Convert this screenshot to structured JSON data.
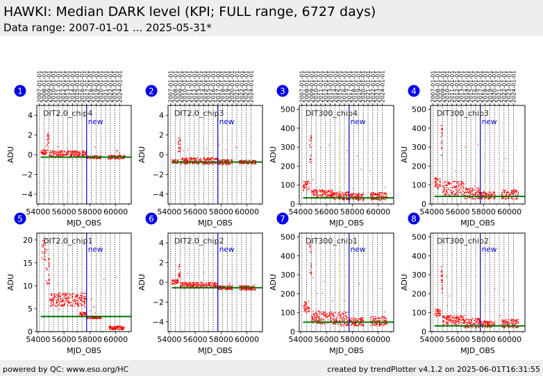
{
  "header": {
    "title": "HAWKI: Median DARK level (KPI; FULL range, 6727 days)",
    "subtitle": "Data range: 2007-01-01 ... 2025-05-31*"
  },
  "footer": {
    "left": "powered by QC: www.eso.org/HC",
    "right": "created by trendPlotter v4.1.2 on 2025-06-01T16:31:55"
  },
  "colors": {
    "points": "#ff0000",
    "reference_line": "#007700",
    "new_marker": "#0000cc",
    "badge": "#0000ee"
  },
  "chart_data": [
    {
      "id": "1",
      "type": "scatter",
      "title": "DIT2.0_chip4",
      "xlabel": "MJD_OBS",
      "ylabel": "ADU",
      "xlim": [
        53900,
        61200
      ],
      "ylim": [
        -5,
        5
      ],
      "yticks": [
        -4,
        -2,
        0,
        2,
        4
      ],
      "xticks": [
        54000,
        56000,
        58000,
        60000
      ],
      "reference_level": -0.25,
      "new_marker_x": 57750,
      "new_label": "new",
      "clusters": [
        {
          "x": [
            54200,
            54700
          ],
          "y": [
            0,
            0.5
          ]
        },
        {
          "x": [
            54700,
            54850
          ],
          "y": [
            0.5,
            2.2
          ]
        },
        {
          "x": [
            54850,
            57750
          ],
          "y": [
            -0.3,
            0.4
          ]
        },
        {
          "x": [
            57750,
            58900
          ],
          "y": [
            -0.4,
            -0.1
          ]
        },
        {
          "x": [
            59400,
            60700
          ],
          "y": [
            -0.45,
            -0.05
          ]
        }
      ]
    },
    {
      "id": "2",
      "type": "scatter",
      "title": "DIT2.0_chip3",
      "xlabel": "MJD_OBS",
      "ylabel": "ADU",
      "xlim": [
        53900,
        61200
      ],
      "ylim": [
        -5,
        5
      ],
      "yticks": [
        -4,
        -2,
        0,
        2,
        4
      ],
      "xticks": [
        54000,
        56000,
        58000,
        60000
      ],
      "reference_level": -0.75,
      "new_marker_x": 57750,
      "new_label": "new",
      "clusters": [
        {
          "x": [
            54200,
            54700
          ],
          "y": [
            -0.9,
            -0.5
          ]
        },
        {
          "x": [
            54700,
            54850
          ],
          "y": [
            0.2,
            1.8
          ]
        },
        {
          "x": [
            54850,
            57750
          ],
          "y": [
            -0.95,
            -0.3
          ]
        },
        {
          "x": [
            57750,
            58900
          ],
          "y": [
            -1.0,
            -0.5
          ]
        },
        {
          "x": [
            59400,
            60700
          ],
          "y": [
            -0.95,
            -0.55
          ]
        }
      ]
    },
    {
      "id": "3",
      "type": "scatter",
      "title": "DIT300_chip4",
      "xlabel": "MJD_OBS",
      "ylabel": "ADU",
      "xlim": [
        53900,
        61200
      ],
      "ylim": [
        0,
        520
      ],
      "yticks": [
        0,
        100,
        200,
        300,
        400,
        500
      ],
      "xticks": [
        54000,
        56000,
        58000,
        60000
      ],
      "reference_level": 32,
      "new_marker_x": 57750,
      "new_label": "new",
      "clusters": [
        {
          "x": [
            54200,
            54700
          ],
          "y": [
            70,
            120
          ]
        },
        {
          "x": [
            54700,
            54850
          ],
          "y": [
            200,
            360
          ]
        },
        {
          "x": [
            54850,
            56500
          ],
          "y": [
            30,
            75
          ]
        },
        {
          "x": [
            56500,
            57750
          ],
          "y": [
            20,
            65
          ]
        },
        {
          "x": [
            57750,
            58900
          ],
          "y": [
            20,
            55
          ]
        },
        {
          "x": [
            59400,
            60700
          ],
          "y": [
            20,
            60
          ]
        }
      ]
    },
    {
      "id": "4",
      "type": "scatter",
      "title": "DIT300_chip3",
      "xlabel": "MJD_OBS",
      "ylabel": "ADU",
      "xlim": [
        53900,
        61200
      ],
      "ylim": [
        0,
        520
      ],
      "yticks": [
        0,
        100,
        200,
        300,
        400,
        500
      ],
      "xticks": [
        54000,
        56000,
        58000,
        60000
      ],
      "reference_level": 40,
      "new_marker_x": 57750,
      "new_label": "new",
      "clusters": [
        {
          "x": [
            54200,
            54700
          ],
          "y": [
            80,
            140
          ]
        },
        {
          "x": [
            54700,
            54850
          ],
          "y": [
            250,
            420
          ]
        },
        {
          "x": [
            54850,
            56500
          ],
          "y": [
            40,
            120
          ]
        },
        {
          "x": [
            56500,
            57750
          ],
          "y": [
            25,
            85
          ]
        },
        {
          "x": [
            57750,
            58900
          ],
          "y": [
            25,
            65
          ]
        },
        {
          "x": [
            59400,
            60700
          ],
          "y": [
            25,
            75
          ]
        }
      ]
    },
    {
      "id": "5",
      "type": "scatter",
      "title": "DIT2.0_chip1",
      "xlabel": "MJD_OBS",
      "ylabel": "ADU",
      "xlim": [
        53900,
        61200
      ],
      "ylim": [
        0,
        21.5
      ],
      "yticks": [
        0,
        5,
        10,
        15,
        20
      ],
      "xticks": [
        54000,
        56000,
        58000,
        60000
      ],
      "reference_level": 3.3,
      "new_marker_x": 57750,
      "new_label": "new",
      "clusters": [
        {
          "x": [
            54300,
            54600
          ],
          "y": [
            15,
            20.5
          ]
        },
        {
          "x": [
            54600,
            54900
          ],
          "y": [
            10,
            18
          ]
        },
        {
          "x": [
            54900,
            57750
          ],
          "y": [
            5.5,
            8.5
          ]
        },
        {
          "x": [
            57200,
            57750
          ],
          "y": [
            3.5,
            4.2
          ]
        },
        {
          "x": [
            57750,
            58900
          ],
          "y": [
            2.8,
            3.4
          ]
        },
        {
          "x": [
            59500,
            60700
          ],
          "y": [
            0.4,
            1.2
          ]
        }
      ]
    },
    {
      "id": "6",
      "type": "scatter",
      "title": "DIT2.0_chip2",
      "xlabel": "MJD_OBS",
      "ylabel": "ADU",
      "xlim": [
        53900,
        61200
      ],
      "ylim": [
        -5,
        5
      ],
      "yticks": [
        -4,
        -2,
        0,
        2,
        4
      ],
      "xticks": [
        54000,
        56000,
        58000,
        60000
      ],
      "reference_level": -0.55,
      "new_marker_x": 57750,
      "new_label": "new",
      "clusters": [
        {
          "x": [
            54200,
            54700
          ],
          "y": [
            -0.2,
            0.3
          ]
        },
        {
          "x": [
            54700,
            54850
          ],
          "y": [
            0.4,
            1.8
          ]
        },
        {
          "x": [
            54850,
            57750
          ],
          "y": [
            -0.6,
            0.0
          ]
        },
        {
          "x": [
            57750,
            58900
          ],
          "y": [
            -0.75,
            -0.35
          ]
        },
        {
          "x": [
            59400,
            60700
          ],
          "y": [
            -0.8,
            -0.35
          ]
        }
      ]
    },
    {
      "id": "7",
      "type": "scatter",
      "title": "DIT300_chip1",
      "xlabel": "MJD_OBS",
      "ylabel": "ADU",
      "xlim": [
        53900,
        61200
      ],
      "ylim": [
        0,
        520
      ],
      "yticks": [
        0,
        100,
        200,
        300,
        400,
        500
      ],
      "xticks": [
        54000,
        56000,
        58000,
        60000
      ],
      "reference_level": 50,
      "new_marker_x": 57750,
      "new_label": "new",
      "clusters": [
        {
          "x": [
            54200,
            54700
          ],
          "y": [
            100,
            160
          ]
        },
        {
          "x": [
            54700,
            54850
          ],
          "y": [
            300,
            480
          ]
        },
        {
          "x": [
            54850,
            56500
          ],
          "y": [
            40,
            110
          ]
        },
        {
          "x": [
            56500,
            57750
          ],
          "y": [
            30,
            105
          ]
        },
        {
          "x": [
            57750,
            58900
          ],
          "y": [
            30,
            75
          ]
        },
        {
          "x": [
            59400,
            60700
          ],
          "y": [
            30,
            80
          ]
        }
      ]
    },
    {
      "id": "8",
      "type": "scatter",
      "title": "DIT300_chip2",
      "xlabel": "MJD_OBS",
      "ylabel": "ADU",
      "xlim": [
        53900,
        61200
      ],
      "ylim": [
        0,
        520
      ],
      "yticks": [
        0,
        100,
        200,
        300,
        400,
        500
      ],
      "xticks": [
        54000,
        56000,
        58000,
        60000
      ],
      "reference_level": 30,
      "new_marker_x": 57750,
      "new_label": "new",
      "clusters": [
        {
          "x": [
            54200,
            54700
          ],
          "y": [
            80,
            120
          ]
        },
        {
          "x": [
            54700,
            54850
          ],
          "y": [
            200,
            350
          ]
        },
        {
          "x": [
            54850,
            56500
          ],
          "y": [
            35,
            85
          ]
        },
        {
          "x": [
            56500,
            57750
          ],
          "y": [
            20,
            70
          ]
        },
        {
          "x": [
            57750,
            58900
          ],
          "y": [
            20,
            55
          ]
        },
        {
          "x": [
            59400,
            60700
          ],
          "y": [
            20,
            65
          ]
        }
      ]
    }
  ],
  "year_ticks": [
    "2007-01-01",
    "2008-01-01",
    "2009-01-01",
    "2010-01-01",
    "2011-01-01",
    "2012-01-01",
    "2013-01-01",
    "2014-01-01",
    "2015-01-01",
    "2016-01-01",
    "2017-01-01",
    "2018-01-01",
    "2019-01-01",
    "2020-01-01",
    "2021-01-01",
    "2022-01-01",
    "2023-01-01",
    "2024-01-01"
  ],
  "year_mjd": [
    54101,
    54466,
    54832,
    55197,
    55562,
    55927,
    56293,
    56658,
    57023,
    57388,
    57754,
    58119,
    58484,
    58849,
    59215,
    59580,
    59945,
    60310
  ]
}
